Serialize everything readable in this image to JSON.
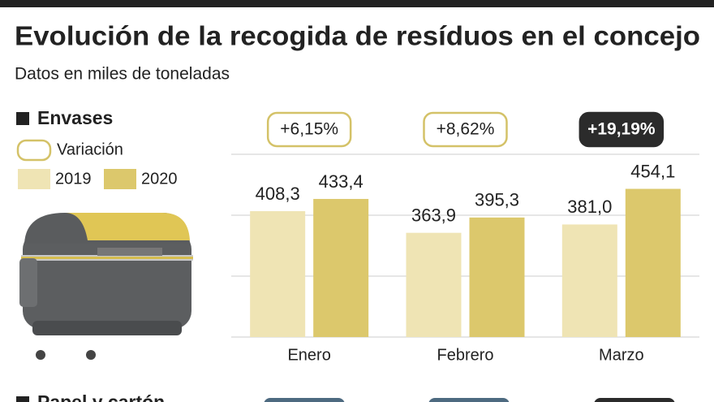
{
  "header": {
    "title": "Evolución de la recogida de resíduos en el concejo",
    "subtitle": "Datos en miles de toneladas"
  },
  "chart_data": {
    "type": "bar",
    "title": "Envases",
    "categories": [
      "Enero",
      "Febrero",
      "Marzo"
    ],
    "series": [
      {
        "name": "2019",
        "color": "#efe4b4",
        "values": [
          408.3,
          363.9,
          381.0
        ],
        "value_labels": [
          "408,3",
          "363,9",
          "381,0"
        ]
      },
      {
        "name": "2020",
        "color": "#dcc86c",
        "values": [
          433.4,
          395.3,
          454.1
        ],
        "value_labels": [
          "433,4",
          "395,3",
          "454,1"
        ]
      }
    ],
    "variation": {
      "name": "Variación",
      "values": [
        6.15,
        8.62,
        19.19
      ],
      "value_labels": [
        "+6,15%",
        "+8,62%",
        "+19,19%"
      ],
      "highlight": [
        false,
        false,
        true
      ]
    },
    "ylim": [
      150,
      525
    ],
    "yticks": [
      150,
      275,
      400,
      525
    ],
    "grid": true
  },
  "next_section": {
    "title": "Papel y cartón"
  }
}
